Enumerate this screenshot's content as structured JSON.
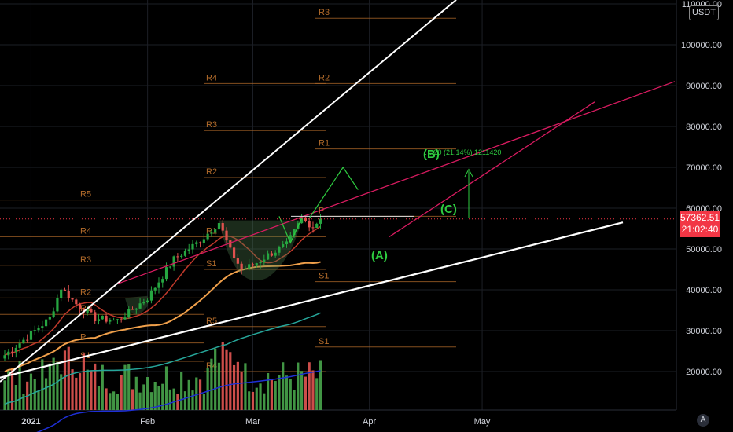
{
  "chart_data": {
    "type": "candlestick",
    "symbol_currency": "USDT",
    "y_axis": {
      "ticks": [
        "20000.00",
        "30000.00",
        "40000.00",
        "50000.00",
        "60000.00",
        "70000.00",
        "80000.00",
        "90000.00",
        "100000.00",
        "110000.00"
      ],
      "tick_values": [
        20000,
        30000,
        40000,
        50000,
        60000,
        70000,
        80000,
        90000,
        100000,
        110000
      ],
      "ylim": [
        11000,
        111000
      ],
      "side": "right"
    },
    "x_axis": {
      "ticks": [
        "2021",
        "Feb",
        "Mar",
        "Apr",
        "May"
      ],
      "tick_dates": [
        "2021-01-01",
        "2021-02-01",
        "2021-03-01",
        "2021-04-01",
        "2021-05-01"
      ]
    },
    "last_price": "57362.51",
    "countdown": "21:02:40",
    "last_price_value": 57362.51,
    "wave_labels": [
      "(A)",
      "(B)",
      "(C)"
    ],
    "measure_text": "….20 (21.14%) 1211420",
    "pivot_labels": [
      "R5",
      "R4",
      "R3",
      "R2",
      "R1",
      "P",
      "S1",
      "R4",
      "R3",
      "R2",
      "R1",
      "S1",
      "R5",
      "R4",
      "R3",
      "R2",
      "R1",
      "P",
      "S1"
    ],
    "seed": 7,
    "candle_count": 85,
    "bar_count": 85,
    "moving_averages": [
      {
        "color": "#c0392b"
      },
      {
        "color": "#f0a04b"
      },
      {
        "color": "#26a69a"
      },
      {
        "color": "#1e2fd6"
      }
    ],
    "colors": {
      "up": "#26a641",
      "down": "#e0514e",
      "vol_up": "#4caf50",
      "vol_down": "#f05a57",
      "pivot": "#b06a2a",
      "trend_white": "#ffffff",
      "trend_red": "#d81b60",
      "wave": "#2ecc40"
    }
  },
  "ui": {
    "auto_button": "A"
  }
}
